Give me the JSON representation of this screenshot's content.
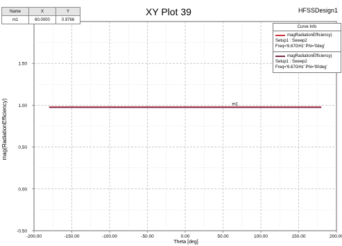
{
  "header": {
    "title": "XY Plot 39",
    "design_name": "HFSSDesign1"
  },
  "marker_table": {
    "columns": [
      "Name",
      "X",
      "Y"
    ],
    "rows": [
      [
        "m1",
        "60.0000",
        "0.9766"
      ]
    ]
  },
  "legend": {
    "header": "Curve Info",
    "entries": [
      {
        "name": "magRadiationEfficiency)",
        "setup": "Setup1 : Sweep2",
        "params": "Freq='6.67GHz' Phi='0deg'",
        "color": "#c8323c"
      },
      {
        "name": "magRadiationEfficiency)",
        "setup": "Setup1 : Sweep2",
        "params": "Freq='6.67GHz' Phi='90deg'",
        "color": "#7a2a4a"
      }
    ]
  },
  "chart_data": {
    "type": "line",
    "title": "XY Plot 39",
    "xlabel": "Theta [deg]",
    "ylabel": "mag(RadiationEfficiency)",
    "xlim": [
      -200,
      200
    ],
    "ylim": [
      -0.5,
      2.0
    ],
    "x_ticks": [
      -200,
      -150,
      -100,
      -50,
      0,
      50,
      100,
      150,
      200
    ],
    "x_tick_labels": [
      "-200.00",
      "-150.00",
      "-100.00",
      "-50.00",
      "0.00",
      "50.00",
      "100.00",
      "150.00",
      "200.00"
    ],
    "y_ticks": [
      -0.5,
      0,
      0.5,
      1.0,
      1.5
    ],
    "y_tick_labels": [
      "-0.50",
      "0.00",
      "0.50",
      "1.00",
      "1.50"
    ],
    "grid": true,
    "legend_position": "top-right",
    "series": [
      {
        "name": "magRadiationEfficiency)",
        "x": [
          -180,
          180
        ],
        "y": [
          0.9766,
          0.9766
        ],
        "color": "#c8323c"
      },
      {
        "name": "magRadiationEfficiency)",
        "x": [
          -180,
          180
        ],
        "y": [
          0.9766,
          0.9766
        ],
        "color": "#7a2a4a"
      }
    ],
    "markers": [
      {
        "label": "m1",
        "x": 60,
        "y": 0.9766
      }
    ]
  }
}
